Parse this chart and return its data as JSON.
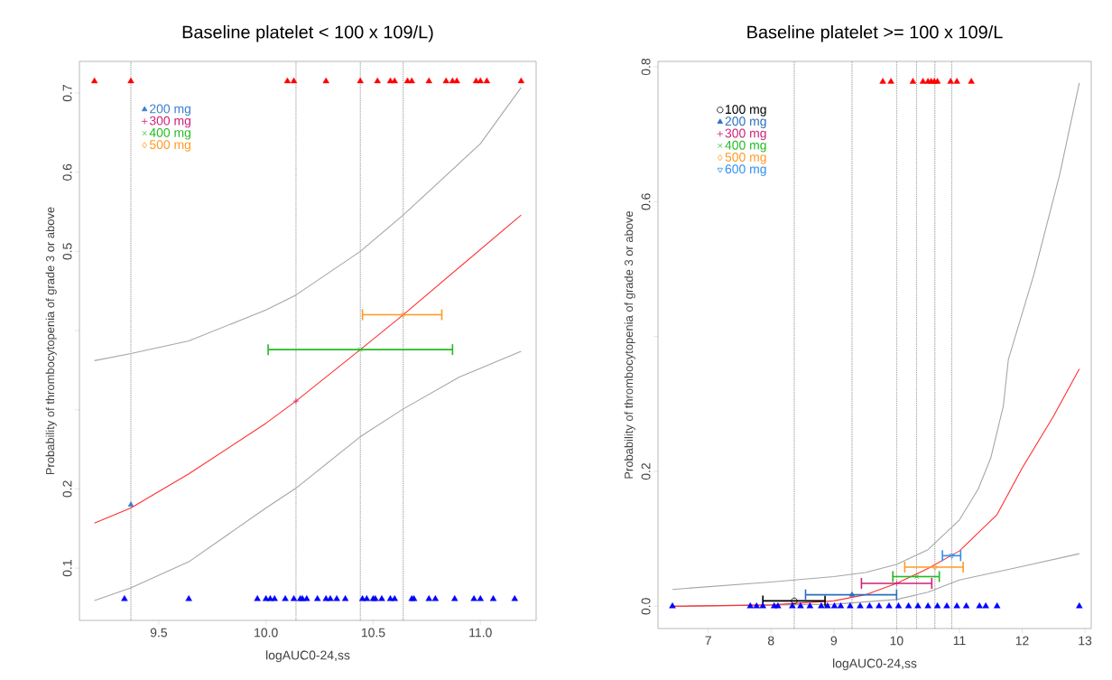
{
  "chart_data": [
    {
      "type": "scatter",
      "title": "Baseline platelet < 100 x 109/L)",
      "xlabel": "logAUC0-24,ss",
      "ylabel": "Probability of thrombocytopenia of grade 3 or above",
      "xlim": [
        9.13,
        11.26
      ],
      "ylim": [
        0.034,
        0.74
      ],
      "xticks": [
        9.5,
        {
          "value": 10,
          "label": "10.0"
        },
        10.5,
        {
          "value": 11,
          "label": "11.0"
        }
      ],
      "yticks": [
        0.1,
        0.2,
        {
          "value": 0.3,
          "label": null
        },
        {
          "value": 0.4,
          "label": null
        },
        0.5,
        0.6,
        0.7
      ],
      "legend": "top left",
      "ref_lines": [
        {
          "axis": "x",
          "value": 9.37,
          "line_style": "dotted",
          "color": "#333333"
        },
        {
          "axis": "x",
          "value": 10.14,
          "line_style": "dotted",
          "color": "#333333"
        },
        {
          "axis": "x",
          "value": 10.44,
          "line_style": "dotted",
          "color": "#333333"
        },
        {
          "axis": "x",
          "value": 10.64,
          "line_style": "dotted",
          "color": "#333333"
        }
      ],
      "series": [
        {
          "type": "line",
          "color": "#a6a6a6",
          "x": [
            9.2,
            9.37,
            9.64,
            10.0,
            10.14,
            10.44,
            10.64,
            11.0,
            11.19
          ],
          "values": [
            0.362,
            0.371,
            0.387,
            0.426,
            0.445,
            0.5,
            0.546,
            0.636,
            0.707
          ]
        },
        {
          "type": "line",
          "color": "#a6a6a6",
          "x": [
            9.2,
            9.37,
            9.64,
            10.0,
            10.14,
            10.44,
            10.64,
            10.9,
            11.19
          ],
          "values": [
            0.059,
            0.075,
            0.108,
            0.176,
            0.201,
            0.266,
            0.301,
            0.341,
            0.374
          ]
        },
        {
          "type": "line",
          "color": "#ff3030",
          "x": [
            9.2,
            9.37,
            9.64,
            10.0,
            10.14,
            10.44,
            10.64,
            11.19
          ],
          "values": [
            0.157,
            0.176,
            0.219,
            0.283,
            0.311,
            0.376,
            0.42,
            0.546
          ]
        },
        {
          "type": "scatter",
          "color": "#ff0000",
          "marker": "triangle",
          "x": [
            9.2,
            9.37,
            10.1,
            10.13,
            10.28,
            10.44,
            10.52,
            10.58,
            10.6,
            10.66,
            10.68,
            10.76,
            10.84,
            10.87,
            10.89,
            10.98,
            11.0,
            11.03,
            11.19
          ],
          "values": [
            0.715,
            0.715,
            0.715,
            0.715,
            0.715,
            0.715,
            0.715,
            0.715,
            0.715,
            0.715,
            0.715,
            0.715,
            0.715,
            0.715,
            0.715,
            0.715,
            0.715,
            0.715,
            0.715
          ]
        },
        {
          "type": "scatter",
          "color": "#0000ff",
          "marker": "triangle",
          "x": [
            9.34,
            9.64,
            9.96,
            10.0,
            10.02,
            10.04,
            10.09,
            10.13,
            10.16,
            10.17,
            10.19,
            10.24,
            10.28,
            10.3,
            10.33,
            10.37,
            10.45,
            10.47,
            10.5,
            10.51,
            10.54,
            10.58,
            10.6,
            10.68,
            10.69,
            10.76,
            10.79,
            10.88,
            10.97,
            11.0,
            11.06,
            11.16
          ],
          "values": [
            0.061,
            0.061,
            0.061,
            0.061,
            0.061,
            0.061,
            0.061,
            0.061,
            0.061,
            0.061,
            0.061,
            0.061,
            0.061,
            0.061,
            0.061,
            0.061,
            0.061,
            0.061,
            0.061,
            0.061,
            0.061,
            0.061,
            0.061,
            0.061,
            0.061,
            0.061,
            0.061,
            0.061,
            0.061,
            0.061,
            0.061,
            0.061
          ]
        },
        {
          "name": "200 mg",
          "color": "#3a7fd0",
          "marker": "triangle",
          "x": [
            9.37
          ],
          "values": [
            0.18
          ]
        },
        {
          "name": "300 mg",
          "color": "#cc2277",
          "marker": "plus",
          "x": [
            10.14
          ],
          "values": [
            0.311
          ]
        },
        {
          "name": "400 mg",
          "color": "#22bb22",
          "marker": "cross",
          "x": [
            10.44
          ],
          "values": [
            0.376
          ],
          "xerrors": [
            [
              10.01,
              10.87
            ]
          ]
        },
        {
          "name": "500 mg",
          "color": "#ff9922",
          "marker": "diamond",
          "x": [
            10.64
          ],
          "values": [
            0.42
          ],
          "xerrors": [
            [
              10.45,
              10.82
            ]
          ]
        }
      ]
    },
    {
      "type": "scatter",
      "title": "Baseline platelet >= 100 x 109/L",
      "xlabel": "logAUC0-24,ss",
      "ylabel": "Probability of thrombocytopenia of grade 3 or above",
      "xlim": [
        6.2,
        13.1
      ],
      "ylim": [
        -0.033,
        0.808
      ],
      "xticks": [
        7,
        8,
        9,
        10,
        11,
        12,
        13
      ],
      "yticks": [
        {
          "value": 0,
          "label": "0.0"
        },
        0.2,
        {
          "value": 0.4,
          "label": null
        },
        0.6,
        0.8
      ],
      "legend": "top left",
      "ref_lines": [
        {
          "axis": "x",
          "value": 8.37,
          "line_style": "dotted",
          "color": "#333333"
        },
        {
          "axis": "x",
          "value": 9.29,
          "line_style": "dotted",
          "color": "#333333"
        },
        {
          "axis": "x",
          "value": 10.0,
          "line_style": "dotted",
          "color": "#333333"
        },
        {
          "axis": "x",
          "value": 10.32,
          "line_style": "dotted",
          "color": "#333333"
        },
        {
          "axis": "x",
          "value": 10.61,
          "line_style": "dotted",
          "color": "#333333"
        },
        {
          "axis": "x",
          "value": 10.88,
          "line_style": "dotted",
          "color": "#333333"
        }
      ],
      "series": [
        {
          "type": "line",
          "color": "#a6a6a6",
          "x": [
            6.43,
            8.0,
            9.0,
            9.5,
            10.0,
            10.5,
            11.0,
            11.3,
            11.5,
            11.7,
            11.78,
            12.19,
            12.6,
            12.91
          ],
          "values": [
            0.025,
            0.036,
            0.044,
            0.05,
            0.062,
            0.084,
            0.128,
            0.174,
            0.22,
            0.297,
            0.366,
            0.493,
            0.641,
            0.776
          ]
        },
        {
          "type": "line",
          "color": "#a6a6a6",
          "x": [
            6.43,
            9.0,
            10.0,
            10.5,
            11.0,
            12.0,
            12.91
          ],
          "values": [
            0.0,
            0.003,
            0.01,
            0.021,
            0.039,
            0.059,
            0.078
          ]
        },
        {
          "type": "line",
          "color": "#ff3030",
          "x": [
            6.43,
            8.0,
            9.0,
            9.5,
            10.0,
            10.5,
            11.0,
            11.6,
            12.0,
            12.5,
            12.91
          ],
          "values": [
            0.0,
            0.002,
            0.008,
            0.017,
            0.034,
            0.056,
            0.082,
            0.136,
            0.205,
            0.282,
            0.352
          ]
        },
        {
          "type": "scatter",
          "color": "#ff0000",
          "marker": "triangle",
          "x": [
            9.78,
            9.91,
            10.26,
            10.42,
            10.5,
            10.55,
            10.6,
            10.65,
            10.86,
            10.96,
            11.19
          ],
          "values": [
            0.778,
            0.778,
            0.778,
            0.778,
            0.778,
            0.778,
            0.778,
            0.778,
            0.778,
            0.778,
            0.778
          ]
        },
        {
          "type": "scatter",
          "color": "#0000ff",
          "marker": "triangle",
          "x": [
            6.43,
            7.67,
            7.77,
            7.87,
            8.05,
            8.11,
            8.34,
            8.47,
            8.62,
            8.8,
            8.9,
            9.01,
            9.11,
            9.26,
            9.42,
            9.57,
            9.72,
            9.88,
            10.03,
            10.19,
            10.34,
            10.5,
            10.65,
            10.8,
            10.96,
            11.11,
            11.32,
            11.42,
            11.6,
            12.91
          ],
          "values": [
            0,
            0,
            0,
            0,
            0,
            0,
            0,
            0,
            0,
            0,
            0,
            0,
            0,
            0,
            0,
            0,
            0,
            0,
            0,
            0,
            0,
            0,
            0,
            0,
            0,
            0,
            0,
            0,
            0,
            0
          ]
        },
        {
          "name": "100 mg",
          "color": "#000000",
          "marker": "circle",
          "x": [
            8.37
          ],
          "values": [
            0.008
          ],
          "xerrors": [
            [
              7.87,
              8.86
            ]
          ]
        },
        {
          "name": "200 mg",
          "color": "#2a6fc0",
          "marker": "triangle",
          "x": [
            9.29
          ],
          "values": [
            0.017
          ],
          "xerrors": [
            [
              8.55,
              10.0
            ]
          ]
        },
        {
          "name": "300 mg",
          "color": "#cc2277",
          "marker": "plus",
          "x": [
            10.0
          ],
          "values": [
            0.034
          ],
          "xerrors": [
            [
              9.44,
              10.56
            ]
          ]
        },
        {
          "name": "400 mg",
          "color": "#22bb22",
          "marker": "cross",
          "x": [
            10.32
          ],
          "values": [
            0.044
          ],
          "xerrors": [
            [
              9.94,
              10.68
            ]
          ]
        },
        {
          "name": "500 mg",
          "color": "#ff9922",
          "marker": "diamond",
          "x": [
            10.61
          ],
          "values": [
            0.058
          ],
          "xerrors": [
            [
              10.13,
              11.06
            ]
          ]
        },
        {
          "name": "600 mg",
          "color": "#2e8fef",
          "marker": "triangle_down",
          "x": [
            10.88
          ],
          "values": [
            0.075
          ],
          "xerrors": [
            [
              10.73,
              11.02
            ]
          ]
        }
      ]
    }
  ]
}
